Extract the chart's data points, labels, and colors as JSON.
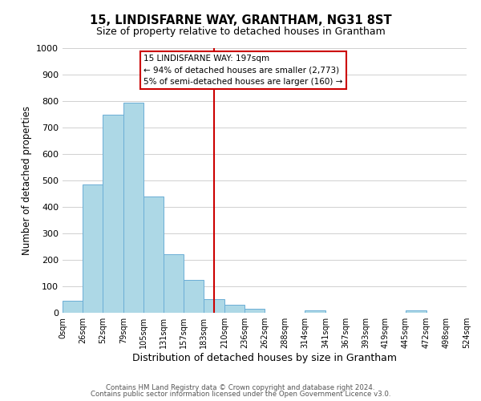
{
  "title": "15, LINDISFARNE WAY, GRANTHAM, NG31 8ST",
  "subtitle": "Size of property relative to detached houses in Grantham",
  "xlabel": "Distribution of detached houses by size in Grantham",
  "ylabel": "Number of detached properties",
  "bin_edges": [
    0,
    26,
    52,
    79,
    105,
    131,
    157,
    183,
    210,
    236,
    262,
    288,
    314,
    341,
    367,
    393,
    419,
    445,
    472,
    498,
    524
  ],
  "bar_heights": [
    44,
    485,
    748,
    795,
    438,
    220,
    125,
    52,
    30,
    15,
    0,
    0,
    8,
    0,
    0,
    0,
    0,
    8,
    0,
    0
  ],
  "bar_color": "#add8e6",
  "bar_edge_color": "#6baed6",
  "property_size": 197,
  "vline_color": "#cc0000",
  "annotation_text1": "15 LINDISFARNE WAY: 197sqm",
  "annotation_text2": "← 94% of detached houses are smaller (2,773)",
  "annotation_text3": "5% of semi-detached houses are larger (160) →",
  "annotation_box_edge": "#cc0000",
  "annotation_box_fill": "#ffffff",
  "ylim": [
    0,
    1000
  ],
  "xlim": [
    0,
    524
  ],
  "tick_labels": [
    "0sqm",
    "26sqm",
    "52sqm",
    "79sqm",
    "105sqm",
    "131sqm",
    "157sqm",
    "183sqm",
    "210sqm",
    "236sqm",
    "262sqm",
    "288sqm",
    "314sqm",
    "341sqm",
    "367sqm",
    "393sqm",
    "419sqm",
    "445sqm",
    "472sqm",
    "498sqm",
    "524sqm"
  ],
  "footer1": "Contains HM Land Registry data © Crown copyright and database right 2024.",
  "footer2": "Contains public sector information licensed under the Open Government Licence v3.0.",
  "background_color": "#ffffff",
  "grid_color": "#d0d0d0"
}
